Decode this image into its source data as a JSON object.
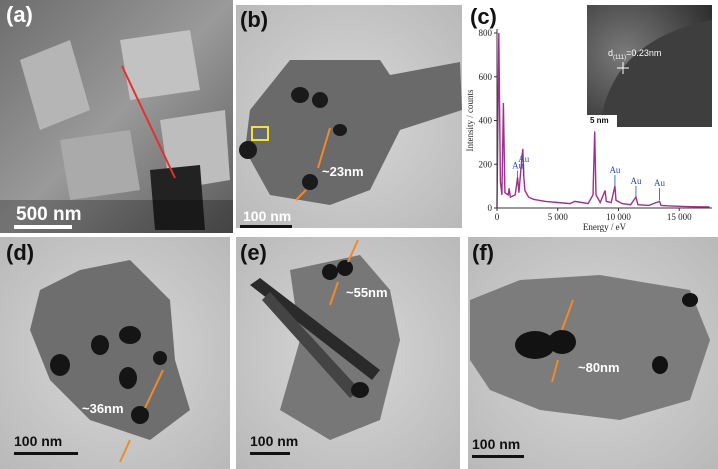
{
  "panels": [
    {
      "label": "(a)",
      "scale_bar": "500 nm"
    },
    {
      "label": "(b)",
      "scale_bar": "100 nm",
      "size": "~23nm"
    },
    {
      "label": "(c)",
      "inset_scale_bar": "5 nm",
      "inset_label": {
        "symbol": "d",
        "subscript": "(111)",
        "value": "=0.23nm"
      }
    },
    {
      "label": "(d)",
      "scale_bar": "100 nm",
      "size": "~36nm"
    },
    {
      "label": "(e)",
      "scale_bar": "100 nm",
      "size": "~55nm"
    },
    {
      "label": "(f)",
      "scale_bar": "100 nm",
      "size": "~80nm"
    }
  ],
  "chart_data": {
    "type": "line",
    "xlabel": "Energy / eV",
    "ylabel": "Intensity / counts",
    "color": "#a0308f",
    "x": [
      0,
      150,
      280,
      400,
      525,
      650,
      930,
      1000,
      1100,
      1500,
      1700,
      1800,
      2050,
      2120,
      2200,
      2300,
      2600,
      3000,
      4000,
      5000,
      6000,
      6400,
      7000,
      7500,
      7900,
      8040,
      8150,
      8500,
      8900,
      9000,
      9400,
      9710,
      9800,
      10300,
      11000,
      11440,
      11600,
      12500,
      13380,
      13500,
      14000,
      15000,
      16000,
      17500
    ],
    "values": [
      0,
      800,
      120,
      60,
      480,
      70,
      60,
      90,
      50,
      60,
      140,
      70,
      230,
      270,
      150,
      80,
      50,
      40,
      30,
      25,
      20,
      30,
      25,
      20,
      60,
      350,
      60,
      25,
      80,
      30,
      25,
      100,
      35,
      20,
      15,
      50,
      15,
      12,
      30,
      12,
      10,
      8,
      6,
      5
    ],
    "xlim": [
      0,
      17700
    ],
    "ylim": [
      0,
      800
    ],
    "xticks": [
      0,
      {
        "value": 5000,
        "label": "5 000"
      },
      {
        "value": 10000,
        "label": "10 000"
      },
      {
        "value": 15000,
        "label": "15 000"
      }
    ],
    "yticks": [
      0,
      200,
      400,
      600,
      800
    ],
    "annotations": [
      {
        "text": "Au",
        "x": 1700,
        "y": 180
      },
      {
        "text": "Au",
        "x": 2200,
        "y": 210
      },
      {
        "text": "Au",
        "x": 9710,
        "y": 160
      },
      {
        "text": "Au",
        "x": 11440,
        "y": 110
      },
      {
        "text": "Au",
        "x": 13380,
        "y": 100
      }
    ]
  }
}
